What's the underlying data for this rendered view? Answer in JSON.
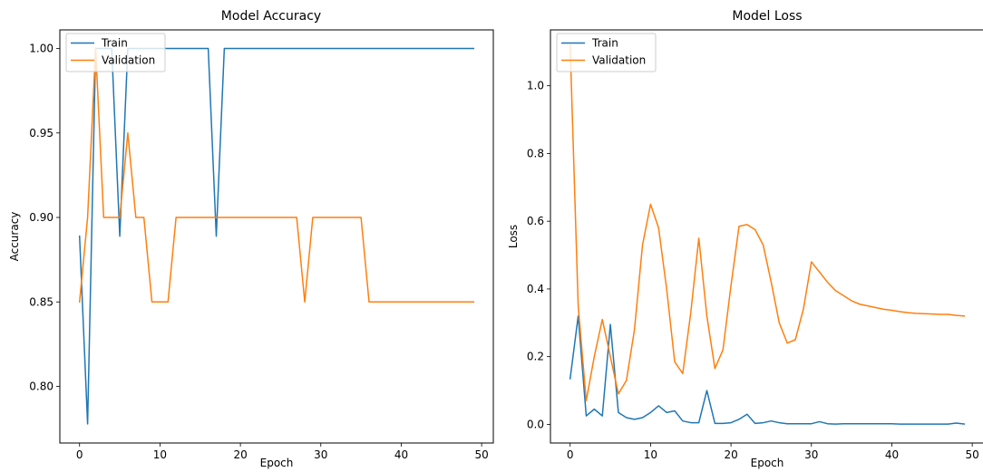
{
  "chart_data": [
    {
      "type": "line",
      "title": "Model Accuracy",
      "xlabel": "Epoch",
      "ylabel": "Accuracy",
      "xlim": [
        -2.45,
        51.45
      ],
      "ylim": [
        0.7665,
        1.011
      ],
      "xticks": [
        0,
        10,
        20,
        30,
        40,
        50
      ],
      "yticks": [
        0.8,
        0.85,
        0.9,
        0.95,
        1.0
      ],
      "xtick_labels": [
        "0",
        "10",
        "20",
        "30",
        "40",
        "50"
      ],
      "ytick_labels": [
        "0.80",
        "0.85",
        "0.90",
        "0.95",
        "1.00"
      ],
      "grid": false,
      "legend": "upper left",
      "x": [
        0,
        1,
        2,
        3,
        4,
        5,
        6,
        7,
        8,
        9,
        10,
        11,
        12,
        13,
        14,
        15,
        16,
        17,
        18,
        19,
        20,
        21,
        22,
        23,
        24,
        25,
        26,
        27,
        28,
        29,
        30,
        31,
        32,
        33,
        34,
        35,
        36,
        37,
        38,
        39,
        40,
        41,
        42,
        43,
        44,
        45,
        46,
        47,
        48,
        49
      ],
      "series": [
        {
          "name": "Train",
          "color": "#1f77b4",
          "values": [
            0.8889,
            0.7778,
            1.0,
            1.0,
            1.0,
            0.8889,
            1.0,
            1.0,
            1.0,
            1.0,
            1.0,
            1.0,
            1.0,
            1.0,
            1.0,
            1.0,
            1.0,
            0.8889,
            1.0,
            1.0,
            1.0,
            1.0,
            1.0,
            1.0,
            1.0,
            1.0,
            1.0,
            1.0,
            1.0,
            1.0,
            1.0,
            1.0,
            1.0,
            1.0,
            1.0,
            1.0,
            1.0,
            1.0,
            1.0,
            1.0,
            1.0,
            1.0,
            1.0,
            1.0,
            1.0,
            1.0,
            1.0,
            1.0,
            1.0,
            1.0
          ]
        },
        {
          "name": "Validation",
          "color": "#ff7f0e",
          "values": [
            0.85,
            0.9,
            1.0,
            0.9,
            0.9,
            0.9,
            0.95,
            0.9,
            0.9,
            0.85,
            0.85,
            0.85,
            0.9,
            0.9,
            0.9,
            0.9,
            0.9,
            0.9,
            0.9,
            0.9,
            0.9,
            0.9,
            0.9,
            0.9,
            0.9,
            0.9,
            0.9,
            0.9,
            0.85,
            0.9,
            0.9,
            0.9,
            0.9,
            0.9,
            0.9,
            0.9,
            0.85,
            0.85,
            0.85,
            0.85,
            0.85,
            0.85,
            0.85,
            0.85,
            0.85,
            0.85,
            0.85,
            0.85,
            0.85,
            0.85
          ]
        }
      ]
    },
    {
      "type": "line",
      "title": "Model Loss",
      "xlabel": "Epoch",
      "ylabel": "Loss",
      "xlim": [
        -2.45,
        51.45
      ],
      "ylim": [
        -0.055,
        1.165
      ],
      "xticks": [
        0,
        10,
        20,
        30,
        40,
        50
      ],
      "yticks": [
        0.0,
        0.2,
        0.4,
        0.6,
        0.8,
        1.0
      ],
      "xtick_labels": [
        "0",
        "10",
        "20",
        "30",
        "40",
        "50"
      ],
      "ytick_labels": [
        "0.0",
        "0.2",
        "0.4",
        "0.6",
        "0.8",
        "1.0"
      ],
      "grid": false,
      "legend": "upper left",
      "x": [
        0,
        1,
        2,
        3,
        4,
        5,
        6,
        7,
        8,
        9,
        10,
        11,
        12,
        13,
        14,
        15,
        16,
        17,
        18,
        19,
        20,
        21,
        22,
        23,
        24,
        25,
        26,
        27,
        28,
        29,
        30,
        31,
        32,
        33,
        34,
        35,
        36,
        37,
        38,
        39,
        40,
        41,
        42,
        43,
        44,
        45,
        46,
        47,
        48,
        49
      ],
      "series": [
        {
          "name": "Train",
          "color": "#1f77b4",
          "values": [
            0.135,
            0.32,
            0.025,
            0.045,
            0.025,
            0.295,
            0.035,
            0.02,
            0.015,
            0.02,
            0.035,
            0.055,
            0.035,
            0.04,
            0.01,
            0.005,
            0.005,
            0.1,
            0.003,
            0.003,
            0.005,
            0.015,
            0.03,
            0.003,
            0.005,
            0.01,
            0.005,
            0.002,
            0.002,
            0.002,
            0.002,
            0.008,
            0.002,
            0.001,
            0.002,
            0.002,
            0.002,
            0.002,
            0.002,
            0.002,
            0.002,
            0.001,
            0.001,
            0.001,
            0.001,
            0.001,
            0.001,
            0.001,
            0.004,
            0.001
          ]
        },
        {
          "name": "Validation",
          "color": "#ff7f0e",
          "values": [
            1.12,
            0.35,
            0.07,
            0.2,
            0.31,
            0.2,
            0.09,
            0.13,
            0.28,
            0.53,
            0.65,
            0.58,
            0.4,
            0.185,
            0.15,
            0.33,
            0.55,
            0.32,
            0.165,
            0.22,
            0.41,
            0.585,
            0.59,
            0.575,
            0.53,
            0.42,
            0.3,
            0.24,
            0.25,
            0.34,
            0.48,
            0.45,
            0.42,
            0.395,
            0.38,
            0.365,
            0.355,
            0.35,
            0.345,
            0.34,
            0.337,
            0.333,
            0.33,
            0.328,
            0.327,
            0.326,
            0.325,
            0.325,
            0.322,
            0.32
          ]
        }
      ]
    }
  ]
}
